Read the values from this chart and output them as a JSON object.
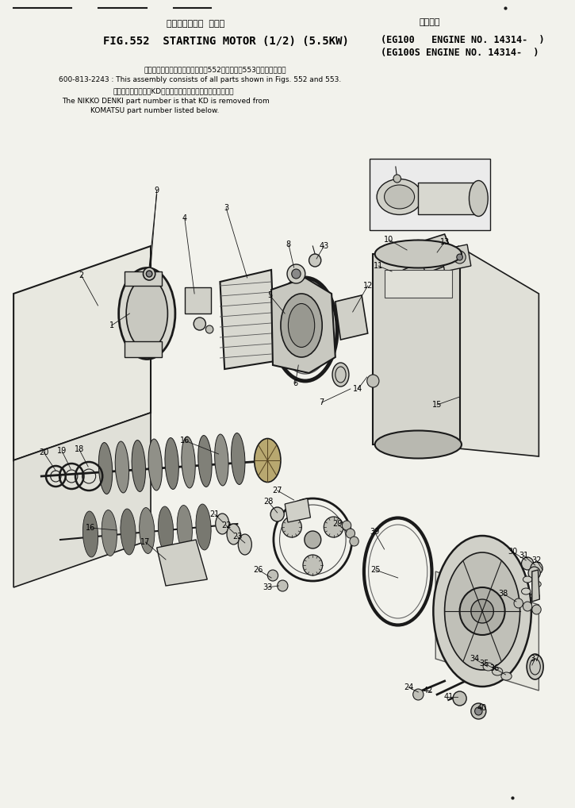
{
  "bg_color": "#f2f2ec",
  "title_jp": "スターティング  モータ",
  "title_right_jp": "適用号機",
  "title_en": "FIG.552  STARTING MOTOR (1/2) (5.5KW)",
  "title_right_en1": "(EG100   ENGINE NO. 14314-  )",
  "title_right_en2": "(EG100S ENGINE NO. 14314-  )",
  "note1_jp": "このアッセンブリの構成部品は第552図および第553図を展みます．",
  "note1_en": "600-813-2243 : This assembly consists of all parts shown in Figs. 552 and 553.",
  "note2_jp": "品番のメーカー記号KDを軽いたものが日興電機の品番です．",
  "note2_en1": "The NIKKO DENKI part number is that KD is removed from",
  "note2_en2": "KOMATSU part number listed below.",
  "line_color": "#1a1a1a",
  "text_color": "#000000"
}
